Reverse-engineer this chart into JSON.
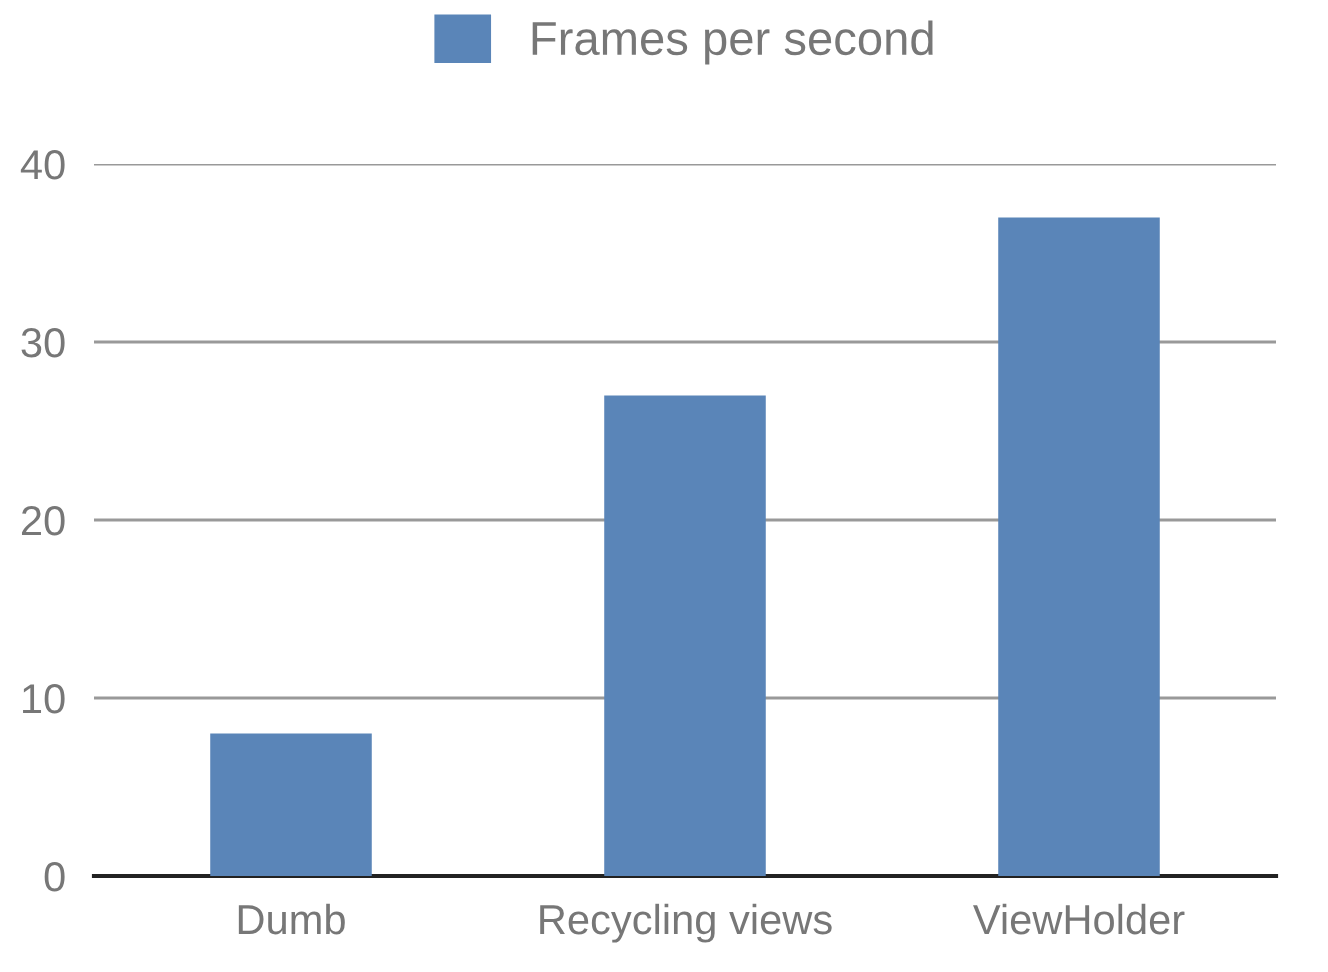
{
  "chart_data": {
    "type": "bar",
    "categories": [
      "Dumb",
      "Recycling views",
      "ViewHolder"
    ],
    "series": [
      {
        "name": "Frames per second",
        "color": "#5a85b8",
        "values": [
          8,
          27,
          37
        ]
      }
    ],
    "ylim": [
      0,
      40
    ],
    "yticks": [
      0,
      10,
      20,
      30,
      40
    ],
    "grid": "y",
    "legend": "top"
  }
}
